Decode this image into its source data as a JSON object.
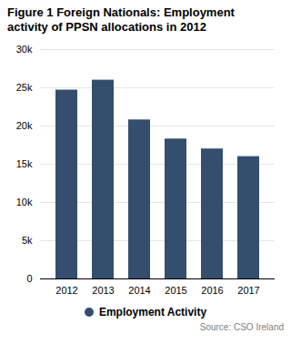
{
  "chart_data": {
    "type": "bar",
    "title": "Figure 1 Foreign Nationals: Employment\nactivity of PPSN allocations in 2012",
    "categories": [
      "2012",
      "2013",
      "2014",
      "2015",
      "2016",
      "2017"
    ],
    "series": [
      {
        "name": "Employment Activity",
        "color": "#344e6e",
        "values": [
          24700,
          26000,
          20800,
          18300,
          17000,
          16000
        ]
      }
    ],
    "ylim": [
      0,
      30000
    ],
    "yticks": [
      0,
      {
        "value": 5000,
        "label": "5k"
      },
      {
        "value": 10000,
        "label": "10k"
      },
      {
        "value": 15000,
        "label": "15k"
      },
      {
        "value": 20000,
        "label": "20k"
      },
      {
        "value": 25000,
        "label": "25k"
      },
      {
        "value": 30000,
        "label": "30k"
      }
    ],
    "grid": true,
    "legend": "bottom",
    "source": "Source: CSO Ireland"
  }
}
